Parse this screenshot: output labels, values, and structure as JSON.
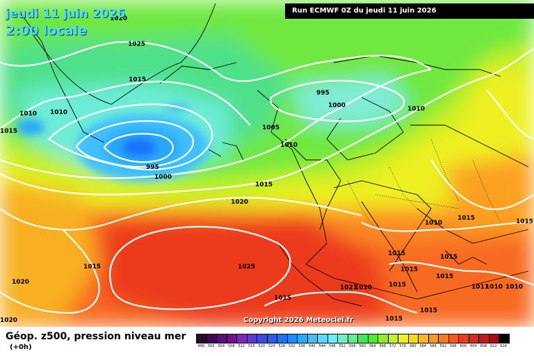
{
  "header": {
    "date": "jeudi 11 juin 2026",
    "time": "2:00 locale",
    "run": "Run ECMWF 0Z du jeudi 11 juin 2026"
  },
  "footer": {
    "title": "Géop. z500, pression niveau mer",
    "offset": "(+0h)",
    "copyright": "Copyright 2026 Meteociel.fr"
  },
  "legend": {
    "values": [
      "496",
      "500",
      "504",
      "508",
      "512",
      "516",
      "520",
      "524",
      "528",
      "532",
      "536",
      "540",
      "544",
      "548",
      "552",
      "556",
      "560",
      "564",
      "568",
      "572",
      "576",
      "580",
      "584",
      "588",
      "592",
      "596",
      "600",
      "604",
      "608",
      "612",
      "616"
    ],
    "colors": [
      "#2a0a2a",
      "#3e0a4e",
      "#5a0a7a",
      "#7a0a9e",
      "#7a2ab0",
      "#5a3ac8",
      "#3a4ae0",
      "#2a5af0",
      "#1a72f8",
      "#1a8cfc",
      "#28a8ff",
      "#40c0ff",
      "#5ad8ff",
      "#70ecf8",
      "#6ef0c0",
      "#5ef088",
      "#40e858",
      "#50e830",
      "#90ec28",
      "#c8f020",
      "#eef020",
      "#f8d820",
      "#fcb820",
      "#fc9820",
      "#fc7820",
      "#f85820",
      "#ec3a1a",
      "#d82a1a",
      "#c01c1a",
      "#a0101a",
      "#000000"
    ]
  },
  "isobars": [
    "1025",
    "1015",
    "1010",
    "1010",
    "1015",
    "995",
    "1000",
    "1010",
    "1005",
    "1010",
    "995",
    "1000",
    "1015",
    "1020",
    "1010",
    "1015",
    "1015",
    "1015",
    "1025",
    "1015",
    "1020",
    "1015",
    "1015",
    "1015",
    "1021",
    "1020",
    "1015",
    "1015",
    "1011",
    "1010",
    "1010",
    "1015",
    "1015",
    "1020",
    "1020"
  ]
}
